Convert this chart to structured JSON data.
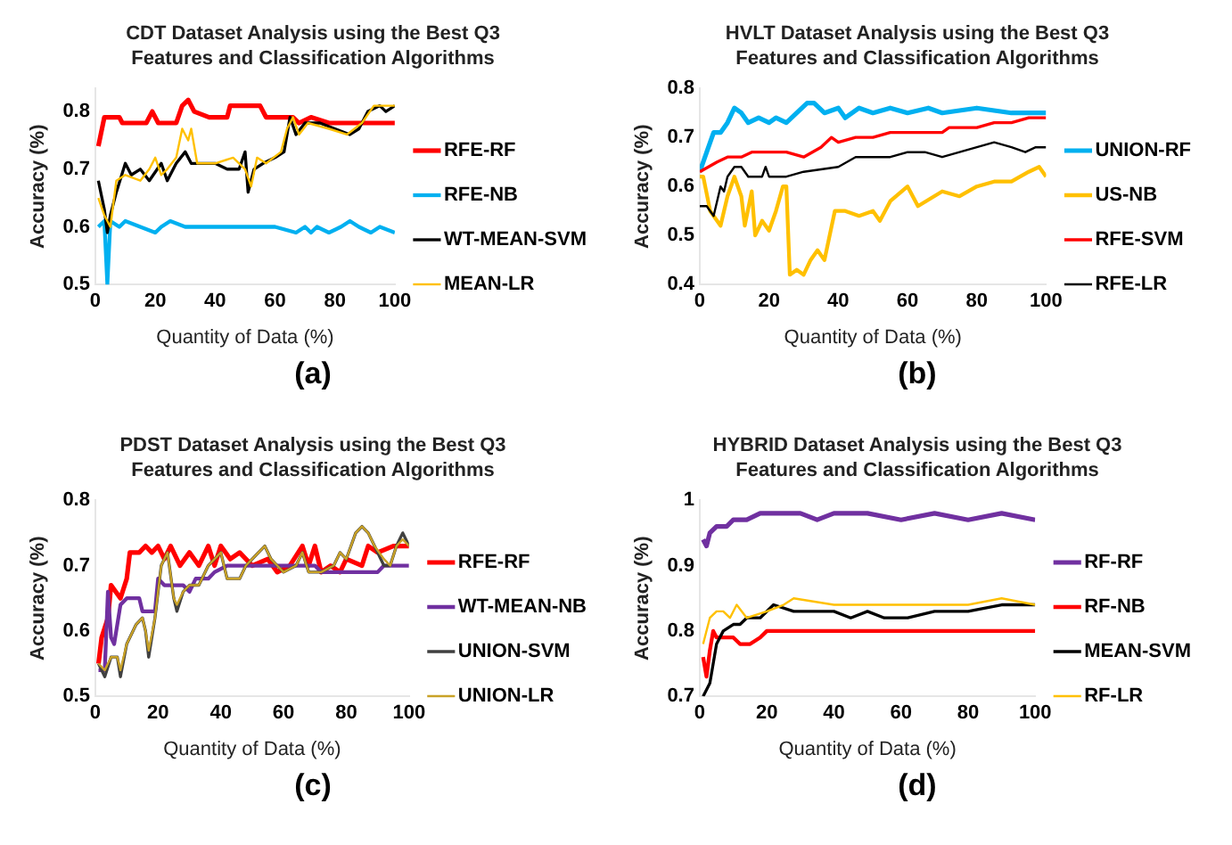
{
  "chart_data": [
    {
      "type": "line",
      "title": "CDT Dataset Analysis using the Best Q3 Features and Classification Algorithms",
      "xlabel": "Quantity of Data (%)",
      "ylabel": "Accuracy (%)",
      "xlim": [
        0,
        100
      ],
      "xticks": [
        0,
        20,
        40,
        60,
        80,
        100
      ],
      "ylim": [
        0.5,
        0.84
      ],
      "yticks": [
        0.5,
        0.6,
        0.7,
        0.8
      ],
      "legend": "right",
      "annotations": [
        "(a)"
      ],
      "series": [
        {
          "name": "RFE-RF",
          "color": "#ff0000",
          "x": [
            1,
            3,
            8,
            9,
            17,
            19,
            21,
            27,
            29,
            31,
            33,
            38,
            44,
            45,
            55,
            57,
            66,
            68,
            72,
            78,
            100
          ],
          "values": [
            0.74,
            0.79,
            0.79,
            0.78,
            0.78,
            0.8,
            0.78,
            0.78,
            0.81,
            0.82,
            0.8,
            0.79,
            0.79,
            0.81,
            0.81,
            0.79,
            0.79,
            0.78,
            0.79,
            0.78,
            0.78
          ]
        },
        {
          "name": "RFE-NB",
          "color": "#00b0f0",
          "x": [
            1,
            3,
            4,
            5,
            8,
            10,
            15,
            20,
            22,
            25,
            30,
            60,
            67,
            70,
            72,
            74,
            78,
            82,
            85,
            88,
            92,
            95,
            100
          ],
          "values": [
            0.6,
            0.61,
            0.5,
            0.61,
            0.6,
            0.61,
            0.6,
            0.59,
            0.6,
            0.61,
            0.6,
            0.6,
            0.59,
            0.6,
            0.59,
            0.6,
            0.59,
            0.6,
            0.61,
            0.6,
            0.59,
            0.6,
            0.59
          ]
        },
        {
          "name": "WT-MEAN-SVM",
          "color": "#000000",
          "x": [
            1,
            3,
            4,
            5,
            7,
            10,
            12,
            15,
            18,
            22,
            24,
            27,
            30,
            32,
            40,
            44,
            48,
            50,
            51,
            53,
            56,
            60,
            63,
            65,
            67,
            70,
            75,
            80,
            85,
            88,
            91,
            95,
            97,
            100
          ],
          "values": [
            0.68,
            0.63,
            0.59,
            0.62,
            0.66,
            0.71,
            0.69,
            0.7,
            0.68,
            0.71,
            0.68,
            0.71,
            0.73,
            0.71,
            0.71,
            0.7,
            0.7,
            0.73,
            0.66,
            0.7,
            0.71,
            0.72,
            0.73,
            0.79,
            0.76,
            0.78,
            0.78,
            0.77,
            0.76,
            0.77,
            0.8,
            0.81,
            0.8,
            0.81
          ]
        },
        {
          "name": "MEAN-LR",
          "color": "#ffc000",
          "x": [
            1,
            3,
            4,
            5,
            7,
            10,
            15,
            18,
            20,
            22,
            24,
            27,
            29,
            31,
            32,
            34,
            40,
            46,
            50,
            52,
            54,
            57,
            62,
            64,
            66,
            68,
            71,
            78,
            84,
            89,
            93,
            100
          ],
          "values": [
            0.65,
            0.62,
            0.61,
            0.6,
            0.68,
            0.69,
            0.68,
            0.7,
            0.72,
            0.69,
            0.7,
            0.72,
            0.77,
            0.75,
            0.77,
            0.71,
            0.71,
            0.72,
            0.7,
            0.67,
            0.72,
            0.71,
            0.73,
            0.77,
            0.79,
            0.76,
            0.78,
            0.77,
            0.76,
            0.78,
            0.81,
            0.81
          ]
        }
      ]
    },
    {
      "type": "line",
      "title": "HVLT Dataset Analysis using the Best Q3 Features and Classification Algorithms",
      "xlabel": "Quantity of Data (%)",
      "ylabel": "Accuracy (%)",
      "xlim": [
        0,
        100
      ],
      "xticks": [
        0,
        20,
        40,
        60,
        80,
        100
      ],
      "ylim": [
        0.4,
        0.8
      ],
      "yticks": [
        0.4,
        0.5,
        0.6,
        0.7,
        0.8
      ],
      "legend": "right",
      "annotations": [
        "(b)"
      ],
      "series": [
        {
          "name": "UNION-RF",
          "color": "#00b0f0",
          "x": [
            0,
            2,
            4,
            6,
            8,
            10,
            12,
            14,
            17,
            20,
            22,
            25,
            28,
            31,
            33,
            36,
            40,
            42,
            46,
            50,
            55,
            60,
            66,
            70,
            80,
            90,
            100
          ],
          "values": [
            0.63,
            0.67,
            0.71,
            0.71,
            0.73,
            0.76,
            0.75,
            0.73,
            0.74,
            0.73,
            0.74,
            0.73,
            0.75,
            0.77,
            0.77,
            0.75,
            0.76,
            0.74,
            0.76,
            0.75,
            0.76,
            0.75,
            0.76,
            0.75,
            0.76,
            0.75,
            0.75
          ]
        },
        {
          "name": "US-NB",
          "color": "#ffc000",
          "x": [
            0,
            1,
            3,
            5,
            6,
            8,
            10,
            12,
            13,
            15,
            16,
            18,
            20,
            22,
            24,
            25,
            26,
            28,
            30,
            32,
            34,
            36,
            39,
            42,
            46,
            50,
            52,
            55,
            60,
            63,
            70,
            75,
            80,
            85,
            90,
            95,
            98,
            100
          ],
          "values": [
            0.62,
            0.62,
            0.55,
            0.53,
            0.52,
            0.58,
            0.62,
            0.58,
            0.52,
            0.59,
            0.5,
            0.53,
            0.51,
            0.55,
            0.6,
            0.6,
            0.42,
            0.43,
            0.42,
            0.45,
            0.47,
            0.45,
            0.55,
            0.55,
            0.54,
            0.55,
            0.53,
            0.57,
            0.6,
            0.56,
            0.59,
            0.58,
            0.6,
            0.61,
            0.61,
            0.63,
            0.64,
            0.62
          ]
        },
        {
          "name": "RFE-SVM",
          "color": "#ff0000",
          "x": [
            0,
            5,
            8,
            12,
            15,
            25,
            30,
            35,
            38,
            40,
            45,
            50,
            55,
            60,
            70,
            72,
            80,
            85,
            90,
            95,
            100
          ],
          "values": [
            0.63,
            0.65,
            0.66,
            0.66,
            0.67,
            0.67,
            0.66,
            0.68,
            0.7,
            0.69,
            0.7,
            0.7,
            0.71,
            0.71,
            0.71,
            0.72,
            0.72,
            0.73,
            0.73,
            0.74,
            0.74
          ]
        },
        {
          "name": "RFE-LR",
          "color": "#000000",
          "x": [
            0,
            2,
            4,
            6,
            7,
            8,
            10,
            12,
            14,
            18,
            19,
            20,
            25,
            30,
            40,
            45,
            50,
            55,
            60,
            65,
            70,
            75,
            80,
            85,
            90,
            94,
            97,
            100
          ],
          "values": [
            0.56,
            0.56,
            0.54,
            0.6,
            0.59,
            0.62,
            0.64,
            0.64,
            0.62,
            0.62,
            0.64,
            0.62,
            0.62,
            0.63,
            0.64,
            0.66,
            0.66,
            0.66,
            0.67,
            0.67,
            0.66,
            0.67,
            0.68,
            0.69,
            0.68,
            0.67,
            0.68,
            0.68
          ]
        }
      ]
    },
    {
      "type": "line",
      "title": "PDST Dataset Analysis using the Best Q3 Features and Classification Algorithms",
      "xlabel": "Quantity of Data (%)",
      "ylabel": "Accuracy (%)",
      "xlim": [
        0,
        100
      ],
      "xticks": [
        0,
        20,
        40,
        60,
        80,
        100
      ],
      "ylim": [
        0.5,
        0.8
      ],
      "yticks": [
        0.5,
        0.6,
        0.7,
        0.8
      ],
      "legend": "right",
      "annotations": [
        "(c)"
      ],
      "series": [
        {
          "name": "RFE-RF",
          "color": "#ff0000",
          "x": [
            1,
            2,
            4,
            5,
            8,
            10,
            11,
            14,
            16,
            18,
            20,
            22,
            24,
            27,
            30,
            33,
            36,
            38,
            40,
            43,
            46,
            50,
            55,
            58,
            62,
            66,
            68,
            70,
            72,
            75,
            78,
            80,
            85,
            87,
            90,
            95,
            100
          ],
          "values": [
            0.55,
            0.59,
            0.62,
            0.67,
            0.65,
            0.68,
            0.72,
            0.72,
            0.73,
            0.72,
            0.73,
            0.71,
            0.73,
            0.7,
            0.72,
            0.7,
            0.73,
            0.7,
            0.73,
            0.71,
            0.72,
            0.7,
            0.71,
            0.69,
            0.7,
            0.73,
            0.7,
            0.73,
            0.69,
            0.7,
            0.69,
            0.71,
            0.7,
            0.73,
            0.72,
            0.73,
            0.73
          ]
        },
        {
          "name": "WT-MEAN-NB",
          "color": "#7030a0",
          "x": [
            1,
            3,
            4,
            5,
            6,
            8,
            10,
            14,
            15,
            19,
            20,
            22,
            28,
            30,
            32,
            36,
            38,
            42,
            70,
            72,
            90,
            92,
            100
          ],
          "values": [
            0.54,
            0.54,
            0.66,
            0.59,
            0.58,
            0.64,
            0.65,
            0.65,
            0.63,
            0.63,
            0.68,
            0.67,
            0.67,
            0.66,
            0.68,
            0.68,
            0.69,
            0.7,
            0.7,
            0.69,
            0.69,
            0.7,
            0.7
          ]
        },
        {
          "name": "UNION-SVM",
          "color": "#404040",
          "x": [
            1,
            3,
            5,
            7,
            8,
            10,
            13,
            15,
            16,
            17,
            19,
            21,
            23,
            25,
            26,
            28,
            30,
            33,
            36,
            38,
            40,
            42,
            46,
            48,
            52,
            54,
            56,
            58,
            60,
            64,
            66,
            68,
            72,
            76,
            78,
            80,
            83,
            85,
            87,
            89,
            92,
            94,
            96,
            98,
            100
          ],
          "values": [
            0.55,
            0.53,
            0.56,
            0.56,
            0.53,
            0.58,
            0.61,
            0.62,
            0.6,
            0.56,
            0.62,
            0.7,
            0.72,
            0.65,
            0.63,
            0.66,
            0.67,
            0.67,
            0.7,
            0.71,
            0.72,
            0.68,
            0.68,
            0.7,
            0.72,
            0.73,
            0.71,
            0.7,
            0.69,
            0.7,
            0.72,
            0.69,
            0.69,
            0.7,
            0.72,
            0.71,
            0.75,
            0.76,
            0.75,
            0.73,
            0.7,
            0.7,
            0.73,
            0.75,
            0.73
          ]
        },
        {
          "name": "UNION-LR",
          "color": "#c9a227",
          "x": [
            1,
            3,
            5,
            7,
            8,
            10,
            13,
            15,
            16,
            17,
            19,
            21,
            23,
            25,
            26,
            28,
            30,
            33,
            36,
            38,
            40,
            42,
            46,
            48,
            52,
            54,
            56,
            58,
            60,
            64,
            66,
            68,
            72,
            76,
            78,
            80,
            83,
            85,
            87,
            89,
            92,
            94,
            96,
            98,
            100
          ],
          "values": [
            0.55,
            0.54,
            0.56,
            0.56,
            0.54,
            0.58,
            0.61,
            0.62,
            0.6,
            0.57,
            0.62,
            0.7,
            0.72,
            0.65,
            0.64,
            0.66,
            0.67,
            0.67,
            0.7,
            0.71,
            0.72,
            0.68,
            0.68,
            0.7,
            0.72,
            0.73,
            0.71,
            0.7,
            0.69,
            0.7,
            0.72,
            0.69,
            0.69,
            0.7,
            0.72,
            0.71,
            0.75,
            0.76,
            0.75,
            0.73,
            0.71,
            0.7,
            0.73,
            0.74,
            0.73
          ]
        }
      ]
    },
    {
      "type": "line",
      "title": "HYBRID Dataset Analysis using the Best Q3 Features and Classification Algorithms",
      "xlabel": "Quantity of Data (%)",
      "ylabel": "Accuracy (%)",
      "xlim": [
        0,
        100
      ],
      "xticks": [
        0,
        20,
        40,
        60,
        80,
        100
      ],
      "ylim": [
        0.7,
        1
      ],
      "yticks": [
        0.7,
        0.8,
        0.9,
        1
      ],
      "legend": "right",
      "annotations": [
        "(d)"
      ],
      "series": [
        {
          "name": "RF-RF",
          "color": "#7030a0",
          "x": [
            1,
            2,
            3,
            5,
            8,
            10,
            14,
            18,
            25,
            30,
            35,
            40,
            50,
            60,
            70,
            80,
            90,
            100
          ],
          "values": [
            0.94,
            0.93,
            0.95,
            0.96,
            0.96,
            0.97,
            0.97,
            0.98,
            0.98,
            0.98,
            0.97,
            0.98,
            0.98,
            0.97,
            0.98,
            0.97,
            0.98,
            0.97
          ]
        },
        {
          "name": "RF-NB",
          "color": "#ff0000",
          "x": [
            1,
            2,
            3,
            4,
            5,
            10,
            12,
            15,
            18,
            20,
            100
          ],
          "values": [
            0.76,
            0.73,
            0.77,
            0.8,
            0.79,
            0.79,
            0.78,
            0.78,
            0.79,
            0.8,
            0.8
          ]
        },
        {
          "name": "MEAN-SVM",
          "color": "#000000",
          "x": [
            1,
            3,
            5,
            7,
            10,
            12,
            14,
            18,
            22,
            28,
            40,
            45,
            50,
            55,
            62,
            70,
            80,
            90,
            100
          ],
          "values": [
            0.7,
            0.72,
            0.78,
            0.8,
            0.81,
            0.81,
            0.82,
            0.82,
            0.84,
            0.83,
            0.83,
            0.82,
            0.83,
            0.82,
            0.82,
            0.83,
            0.83,
            0.84,
            0.84
          ]
        },
        {
          "name": "RF-LR",
          "color": "#ffc000",
          "x": [
            1,
            3,
            5,
            7,
            9,
            11,
            14,
            20,
            25,
            28,
            40,
            60,
            80,
            90,
            100
          ],
          "values": [
            0.78,
            0.82,
            0.83,
            0.83,
            0.82,
            0.84,
            0.82,
            0.83,
            0.84,
            0.85,
            0.84,
            0.84,
            0.84,
            0.85,
            0.84
          ]
        }
      ]
    }
  ]
}
